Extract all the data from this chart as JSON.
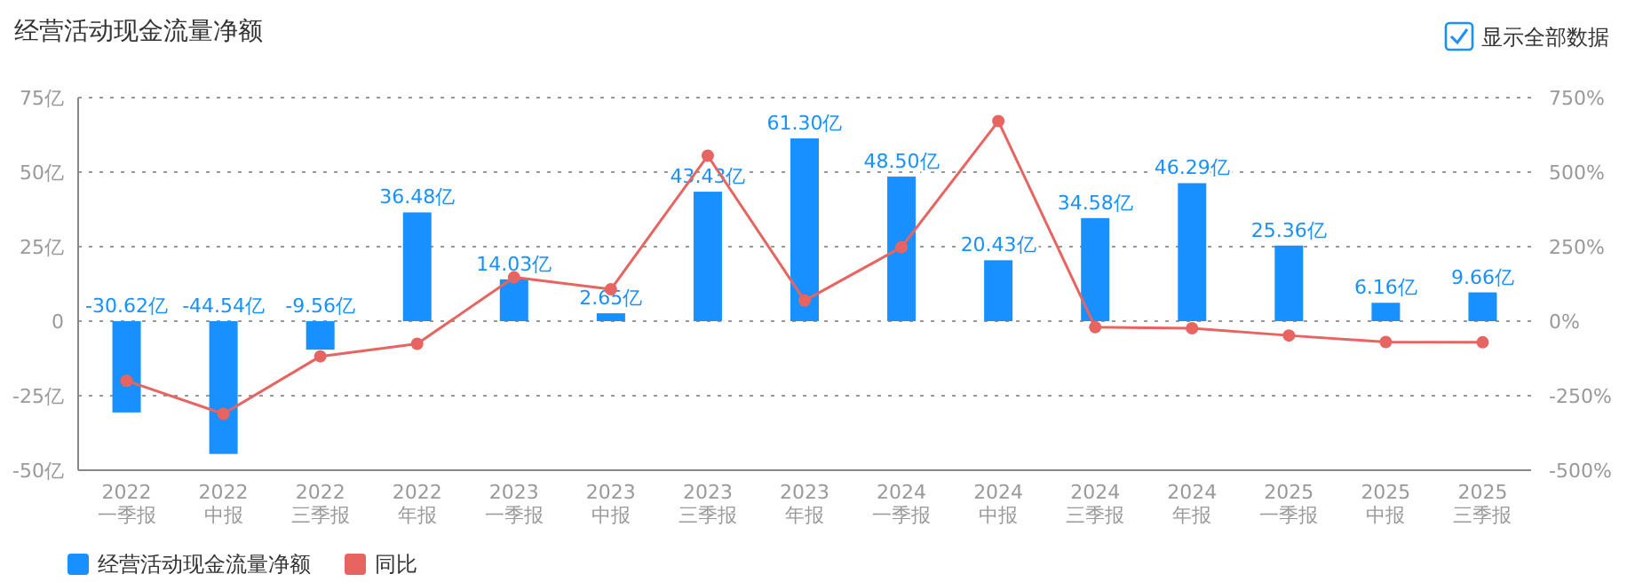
{
  "chart_data": {
    "type": "bar",
    "title": "经营活动现金流量净额",
    "categories": [
      "2022\n一季报",
      "2022\n中报",
      "2022\n三季报",
      "2022\n年报",
      "2023\n一季报",
      "2023\n中报",
      "2023\n三季报",
      "2023\n年报",
      "2024\n一季报",
      "2024\n中报",
      "2024\n三季报",
      "2024\n年报",
      "2025\n一季报",
      "2025\n中报",
      "2025\n三季报"
    ],
    "series": [
      {
        "name": "经营活动现金流量净额",
        "color": "#1890ff",
        "values": [
          -30.62,
          -44.54,
          -9.56,
          36.48,
          14.03,
          2.65,
          43.43,
          61.3,
          48.5,
          20.43,
          34.58,
          46.29,
          25.36,
          6.16,
          9.66
        ],
        "value_labels": [
          "-30.62亿",
          "-44.54亿",
          "-9.56亿",
          "36.48亿",
          "14.03亿",
          "2.65亿",
          "43.43亿",
          "61.30亿",
          "48.50亿",
          "20.43亿",
          "34.58亿",
          "46.29亿",
          "25.36亿",
          "6.16亿",
          "9.66亿"
        ]
      },
      {
        "name": "同比",
        "type": "line",
        "axis": "y2",
        "color": "#e86461",
        "values": [
          -200,
          -311,
          -118,
          -76,
          147,
          107,
          555,
          69,
          248,
          671,
          -20,
          -24,
          -48,
          -70,
          -71
        ]
      }
    ],
    "ylim": [
      -50,
      75
    ],
    "yticks": [
      {
        "value": -50,
        "label": "-50亿"
      },
      {
        "value": -25,
        "label": "-25亿"
      },
      0,
      {
        "value": 25,
        "label": "25亿"
      },
      {
        "value": 50,
        "label": "50亿"
      },
      {
        "value": 75,
        "label": "75亿"
      }
    ],
    "y2lim": [
      -500,
      750
    ],
    "y2ticks": [
      {
        "value": -500,
        "label": "-500%"
      },
      {
        "value": -250,
        "label": "-250%"
      },
      {
        "value": 0,
        "label": "0%"
      },
      {
        "value": 250,
        "label": "250%"
      },
      {
        "value": 500,
        "label": "500%"
      },
      {
        "value": 750,
        "label": "750%"
      }
    ],
    "grid": "y",
    "legend": "bottom left",
    "marker": "circle",
    "line_style": "solid",
    "annotations": [
      "显示全部数据"
    ]
  }
}
